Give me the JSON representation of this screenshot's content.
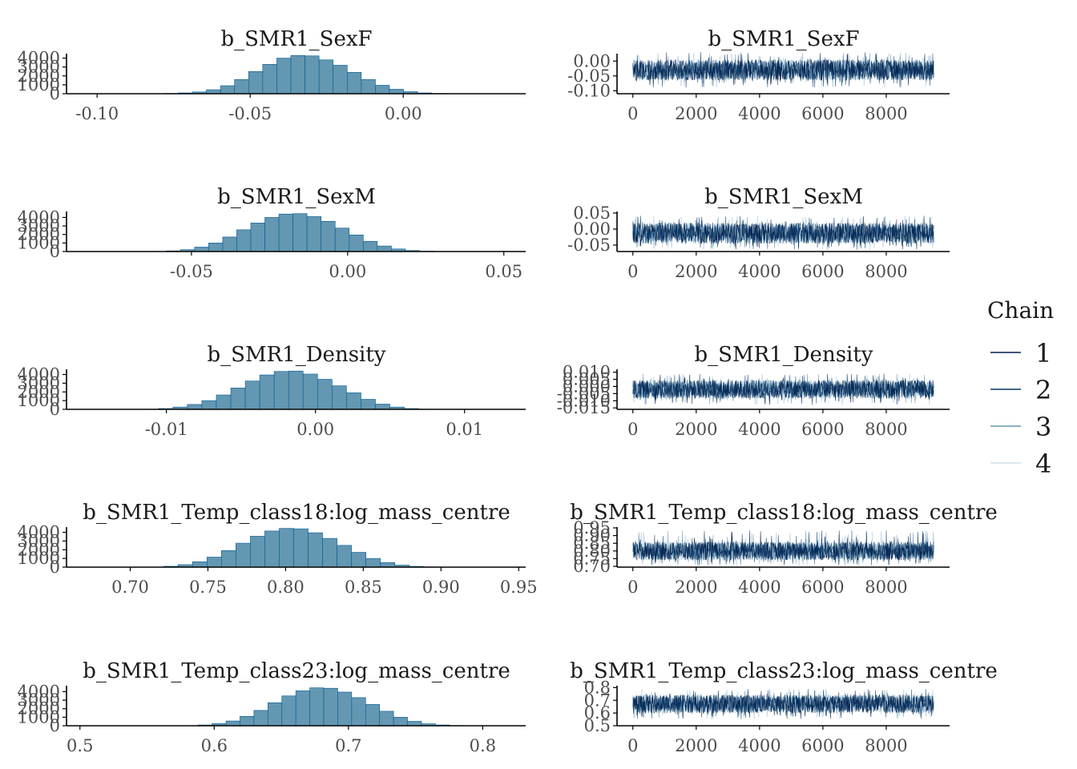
{
  "colors": {
    "hist_fill": "#6497b1",
    "hist_stroke": "#005b96",
    "axis": "#000000",
    "tick_text": "#4d4d4d",
    "chain": [
      "#011f4b",
      "#03396c",
      "#6497b1",
      "#d1e1ec"
    ]
  },
  "legend": {
    "title": "Chain",
    "labels": [
      "1",
      "2",
      "3",
      "4"
    ],
    "placement": "right"
  },
  "chart_data": [
    {
      "type": "bar",
      "panel": "histogram",
      "title": "b_SMR1_SexF",
      "xlim": [
        -0.11,
        0.04
      ],
      "ylim": [
        0,
        4500
      ],
      "xticks": [
        -0.1,
        -0.05,
        0.0
      ],
      "xtick_labels": [
        "-0.10",
        "-0.05",
        "0.00"
      ],
      "yticks": [
        0,
        1000,
        2000,
        3000,
        4000
      ],
      "ytick_labels": [
        "0",
        "1000",
        "2000",
        "3000",
        "4000"
      ],
      "bin_start": -0.0965,
      "bin_width": 0.0046,
      "counts": [
        0,
        2,
        5,
        12,
        35,
        90,
        200,
        450,
        900,
        1600,
        2500,
        3300,
        4000,
        4300,
        4250,
        3800,
        3200,
        2400,
        1600,
        950,
        500,
        230,
        90,
        30,
        8,
        2
      ]
    },
    {
      "type": "line",
      "panel": "trace",
      "title": "b_SMR1_SexF",
      "xlim": [
        -500,
        10000
      ],
      "ylim": [
        -0.11,
        0.025
      ],
      "xticks": [
        0,
        2000,
        4000,
        6000,
        8000
      ],
      "xtick_labels": [
        "0",
        "2000",
        "4000",
        "6000",
        "8000"
      ],
      "yticks": [
        -0.1,
        -0.05,
        0.0
      ],
      "ytick_labels": [
        "-0.10",
        "-0.05",
        "0.00"
      ],
      "iterations": 9500,
      "band": [
        -0.065,
        0.005
      ],
      "center": -0.03,
      "extremes": [
        -0.09,
        0.03
      ]
    },
    {
      "type": "bar",
      "panel": "histogram",
      "title": "b_SMR1_SexM",
      "xlim": [
        -0.09,
        0.057
      ],
      "ylim": [
        0,
        4700
      ],
      "xticks": [
        -0.05,
        0.0,
        0.05
      ],
      "xtick_labels": [
        "-0.05",
        "0.00",
        "0.05"
      ],
      "yticks": [
        0,
        1000,
        2000,
        3000,
        4000
      ],
      "ytick_labels": [
        "0",
        "1000",
        "2000",
        "3000",
        "4000"
      ],
      "bin_start": -0.0625,
      "bin_width": 0.0045,
      "counts": [
        20,
        80,
        220,
        520,
        1000,
        1700,
        2550,
        3350,
        4000,
        4400,
        4450,
        4100,
        3550,
        2750,
        1950,
        1200,
        650,
        300,
        120,
        40,
        10,
        3
      ]
    },
    {
      "type": "line",
      "panel": "trace",
      "title": "b_SMR1_SexM",
      "xlim": [
        -500,
        10000
      ],
      "ylim": [
        -0.07,
        0.055
      ],
      "xticks": [
        0,
        2000,
        4000,
        6000,
        8000
      ],
      "xtick_labels": [
        "0",
        "2000",
        "4000",
        "6000",
        "8000"
      ],
      "yticks": [
        -0.05,
        0.0,
        0.05
      ],
      "ytick_labels": [
        "-0.05",
        "0.00",
        "0.05"
      ],
      "iterations": 9500,
      "band": [
        -0.045,
        0.02
      ],
      "center": -0.013,
      "extremes": [
        -0.065,
        0.042
      ]
    },
    {
      "type": "bar",
      "panel": "histogram",
      "title": "b_SMR1_Density",
      "xlim": [
        -0.0167,
        0.0141
      ],
      "ylim": [
        0,
        4600
      ],
      "xticks": [
        -0.01,
        0.0,
        0.01
      ],
      "xtick_labels": [
        "-0.01",
        "0.00",
        "0.01"
      ],
      "yticks": [
        0,
        1000,
        2000,
        3000,
        4000
      ],
      "ytick_labels": [
        "0",
        "1000",
        "2000",
        "3000",
        "4000"
      ],
      "bin_start": -0.0115,
      "bin_width": 0.00097,
      "counts": [
        20,
        90,
        260,
        560,
        1000,
        1650,
        2450,
        3250,
        3950,
        4350,
        4400,
        4050,
        3450,
        2700,
        1900,
        1150,
        600,
        260,
        90,
        25,
        5
      ]
    },
    {
      "type": "line",
      "panel": "trace",
      "title": "b_SMR1_Density",
      "xlim": [
        -500,
        10000
      ],
      "ylim": [
        -0.016,
        0.012
      ],
      "xticks": [
        0,
        2000,
        4000,
        6000,
        8000
      ],
      "xtick_labels": [
        "0",
        "2000",
        "4000",
        "6000",
        "8000"
      ],
      "yticks": [
        -0.015,
        -0.01,
        -0.005,
        0.0,
        0.005,
        0.01
      ],
      "ytick_labels": [
        "-0.015",
        "-0.010",
        "-0.005",
        "0.000",
        "0.005",
        "0.010"
      ],
      "iterations": 9500,
      "band": [
        -0.0085,
        0.0045
      ],
      "center": -0.002,
      "extremes": [
        -0.013,
        0.009
      ]
    },
    {
      "type": "bar",
      "panel": "histogram",
      "title": "b_SMR1_Temp_class18:log_mass_centre",
      "xlim": [
        0.659,
        0.9545
      ],
      "ylim": [
        0,
        4600
      ],
      "xticks": [
        0.7,
        0.75,
        0.8,
        0.85,
        0.9,
        0.95
      ],
      "xtick_labels": [
        "0.70",
        "0.75",
        "0.80",
        "0.85",
        "0.90",
        "0.95"
      ],
      "yticks": [
        0,
        1000,
        2000,
        3000,
        4000
      ],
      "ytick_labels": [
        "0",
        "1000",
        "2000",
        "3000",
        "4000"
      ],
      "bin_start": 0.7215,
      "bin_width": 0.0093,
      "counts": [
        100,
        280,
        620,
        1150,
        1900,
        2750,
        3550,
        4150,
        4450,
        4400,
        3950,
        3300,
        2500,
        1700,
        1000,
        520,
        230,
        90,
        30,
        8
      ]
    },
    {
      "type": "line",
      "panel": "trace",
      "title": "b_SMR1_Temp_class18:log_mass_centre",
      "xlim": [
        -500,
        10000
      ],
      "ylim": [
        0.695,
        0.955
      ],
      "xticks": [
        0,
        2000,
        4000,
        6000,
        8000
      ],
      "xtick_labels": [
        "0",
        "2000",
        "4000",
        "6000",
        "8000"
      ],
      "yticks": [
        0.7,
        0.75,
        0.8,
        0.85,
        0.9,
        0.95
      ],
      "ytick_labels": [
        "0.70",
        "0.75",
        "0.80",
        "0.85",
        "0.90",
        "0.95"
      ],
      "iterations": 9500,
      "band": [
        0.74,
        0.86
      ],
      "center": 0.8,
      "extremes": [
        0.705,
        0.935
      ]
    },
    {
      "type": "bar",
      "panel": "histogram",
      "title": "b_SMR1_Temp_class23:log_mass_centre",
      "xlim": [
        0.49,
        0.832
      ],
      "ylim": [
        0,
        4700
      ],
      "xticks": [
        0.5,
        0.6,
        0.7,
        0.8
      ],
      "xtick_labels": [
        "0.5",
        "0.6",
        "0.7",
        "0.8"
      ],
      "yticks": [
        0,
        1000,
        2000,
        3000,
        4000
      ],
      "ytick_labels": [
        "0",
        "1000",
        "2000",
        "3000",
        "4000"
      ],
      "bin_start": 0.588,
      "bin_width": 0.0104,
      "counts": [
        90,
        250,
        560,
        1100,
        1800,
        2700,
        3500,
        4100,
        4450,
        4400,
        3950,
        3300,
        2500,
        1700,
        1000,
        520,
        230,
        90,
        30
      ]
    },
    {
      "type": "line",
      "panel": "trace",
      "title": "b_SMR1_Temp_class23:log_mass_centre",
      "xlim": [
        -500,
        10000
      ],
      "ylim": [
        0.5,
        0.815
      ],
      "xticks": [
        0,
        2000,
        4000,
        6000,
        8000
      ],
      "xtick_labels": [
        "0",
        "2000",
        "4000",
        "6000",
        "8000"
      ],
      "yticks": [
        0.5,
        0.6,
        0.7,
        0.8
      ],
      "ytick_labels": [
        "0.5",
        "0.6",
        "0.7",
        "0.8"
      ],
      "iterations": 9500,
      "band": [
        0.6,
        0.745
      ],
      "center": 0.672,
      "extremes": [
        0.55,
        0.79
      ]
    }
  ]
}
